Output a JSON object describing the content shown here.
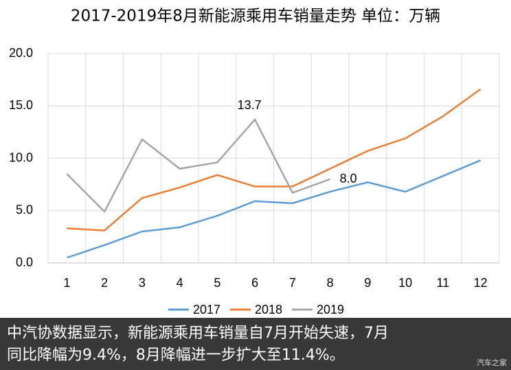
{
  "chart_data": {
    "type": "line",
    "title": "2017-2019年8月新能源乘用车销量走势  单位：万辆",
    "categories": [
      "1",
      "2",
      "3",
      "4",
      "5",
      "6",
      "7",
      "8",
      "9",
      "10",
      "11",
      "12"
    ],
    "series": [
      {
        "name": "2017",
        "color": "#5b9bd5",
        "values": [
          0.5,
          1.7,
          3.0,
          3.4,
          4.5,
          5.9,
          5.7,
          6.8,
          7.7,
          6.8,
          8.3,
          9.8
        ]
      },
      {
        "name": "2018",
        "color": "#ed7d31",
        "values": [
          3.3,
          3.1,
          6.2,
          7.2,
          8.4,
          7.3,
          7.3,
          9.0,
          10.7,
          11.9,
          14.0,
          16.6
        ]
      },
      {
        "name": "2019",
        "color": "#a5a5a5",
        "values": [
          8.5,
          4.9,
          11.8,
          9.0,
          9.6,
          13.7,
          6.7,
          8.0,
          null,
          null,
          null,
          null
        ],
        "value_labels": [
          null,
          null,
          null,
          null,
          null,
          "13.7",
          null,
          "8.0",
          null,
          null,
          null,
          null
        ]
      }
    ],
    "ylim": [
      0,
      20
    ],
    "yticks": [
      {
        "value": 0,
        "label": "0.0"
      },
      {
        "value": 5,
        "label": "5.0"
      },
      {
        "value": 10,
        "label": "10.0"
      },
      {
        "value": 15,
        "label": "15.0"
      },
      {
        "value": 20,
        "label": "20.0"
      }
    ],
    "grid": true,
    "legend": "bottom"
  },
  "caption": {
    "lines": [
      "中汽协数据显示，新能源乘用车销量自7月开始失速，7月",
      "同比降幅为9.4%，8月降幅进一步扩大至11.4%。"
    ],
    "watermark": "汽车之家"
  }
}
